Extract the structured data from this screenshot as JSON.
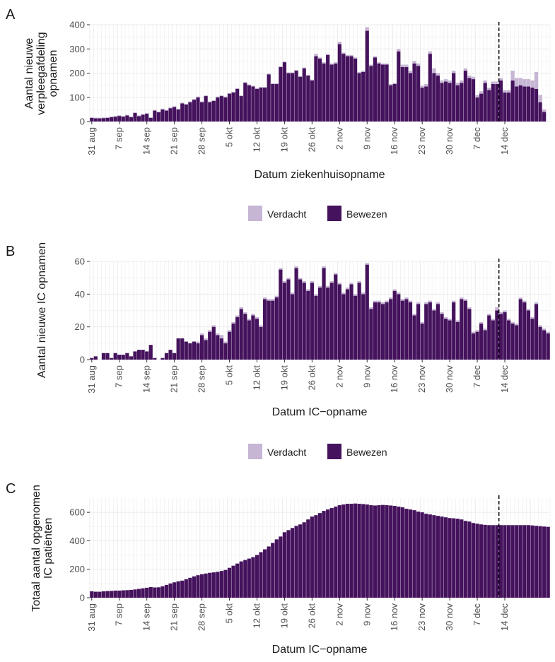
{
  "colors": {
    "bewezen": "#45125d",
    "verdacht": "#c6b5d4",
    "grid": "#ebebeb",
    "axis_text": "#4d4d4d",
    "title_text": "#1a1a1a"
  },
  "x_tick_labels": [
    "31 aug",
    "7 sep",
    "14 sep",
    "21 sep",
    "28 sep",
    "5 okt",
    "12 okt",
    "19 okt",
    "26 okt",
    "2 nov",
    "9 nov",
    "16 nov",
    "23 nov",
    "30 nov",
    "7 dec",
    "14 dec"
  ],
  "reference_line_date": "2020-12-13",
  "chart_data": [
    {
      "panel_tag": "A",
      "type": "bar",
      "stacked": true,
      "start_date": "2020-08-31",
      "ylabel_lines": [
        "Aantal nieuwe",
        "verpleegafdeling",
        "opnamen"
      ],
      "xlabel": "Datum ziekenhuisopname",
      "ylim": [
        0,
        400
      ],
      "y_ticks": [
        0,
        100,
        200,
        300,
        400
      ],
      "legend": {
        "position": "bottom",
        "entries": [
          "Verdacht",
          "Bewezen"
        ]
      },
      "grid": true,
      "series": [
        {
          "name": "Bewezen",
          "values": [
            15,
            13,
            13,
            14,
            15,
            18,
            20,
            23,
            20,
            25,
            18,
            35,
            22,
            28,
            32,
            15,
            45,
            38,
            50,
            45,
            55,
            60,
            50,
            75,
            70,
            80,
            90,
            100,
            80,
            105,
            80,
            85,
            100,
            105,
            100,
            115,
            120,
            135,
            105,
            160,
            150,
            145,
            135,
            140,
            140,
            195,
            155,
            155,
            225,
            245,
            200,
            200,
            210,
            185,
            220,
            190,
            170,
            270,
            260,
            240,
            275,
            235,
            240,
            320,
            280,
            270,
            270,
            260,
            200,
            205,
            375,
            230,
            265,
            240,
            235,
            235,
            150,
            155,
            290,
            225,
            225,
            200,
            240,
            230,
            140,
            145,
            280,
            200,
            190,
            160,
            165,
            160,
            200,
            150,
            160,
            210,
            180,
            175,
            100,
            115,
            160,
            130,
            155,
            155,
            170,
            120,
            120,
            170,
            145,
            150,
            145,
            145,
            140,
            135,
            80,
            40
          ],
          "partial_from_date": "2020-12-13"
        },
        {
          "name": "Verdacht",
          "values": [
            3,
            3,
            3,
            3,
            3,
            3,
            3,
            3,
            3,
            3,
            3,
            3,
            3,
            3,
            3,
            3,
            3,
            3,
            3,
            3,
            3,
            3,
            3,
            3,
            3,
            3,
            3,
            3,
            3,
            3,
            3,
            3,
            3,
            3,
            3,
            3,
            3,
            3,
            3,
            3,
            3,
            3,
            3,
            3,
            3,
            3,
            3,
            3,
            3,
            3,
            3,
            3,
            3,
            3,
            3,
            3,
            3,
            10,
            5,
            5,
            5,
            5,
            5,
            10,
            5,
            5,
            5,
            5,
            5,
            5,
            15,
            5,
            5,
            5,
            5,
            5,
            5,
            5,
            10,
            10,
            10,
            10,
            10,
            10,
            8,
            10,
            10,
            20,
            10,
            10,
            10,
            10,
            10,
            10,
            10,
            10,
            10,
            10,
            10,
            10,
            10,
            10,
            10,
            10,
            10,
            10,
            10,
            40,
            35,
            30,
            30,
            30,
            30,
            70,
            30,
            10
          ]
        }
      ]
    },
    {
      "panel_tag": "B",
      "type": "bar",
      "stacked": true,
      "start_date": "2020-08-31",
      "ylabel_lines": [
        "Aantal nieuwe IC opnamen"
      ],
      "xlabel": "Datum IC−opname",
      "ylim": [
        0,
        60
      ],
      "y_ticks": [
        0,
        20,
        40,
        60
      ],
      "legend": {
        "position": "bottom",
        "entries": [
          "Verdacht",
          "Bewezen"
        ]
      },
      "grid": true,
      "series": [
        {
          "name": "Bewezen",
          "values": [
            1,
            2,
            0,
            4,
            4,
            1,
            4,
            3,
            3,
            4,
            2,
            5,
            6,
            6,
            5,
            9,
            1,
            0,
            1,
            4,
            6,
            4,
            13,
            13,
            11,
            10,
            11,
            10,
            15,
            12,
            17,
            20,
            15,
            13,
            10,
            17,
            22,
            26,
            31,
            28,
            24,
            27,
            25,
            20,
            37,
            36,
            36,
            38,
            55,
            47,
            49,
            40,
            56,
            49,
            47,
            42,
            47,
            39,
            44,
            56,
            44,
            47,
            52,
            46,
            40,
            43,
            46,
            39,
            47,
            40,
            58,
            31,
            35,
            35,
            34,
            35,
            37,
            42,
            40,
            36,
            37,
            35,
            27,
            34,
            22,
            34,
            35,
            30,
            34,
            28,
            25,
            24,
            35,
            23,
            37,
            36,
            31,
            16,
            17,
            22,
            18,
            27,
            24,
            30,
            28,
            29,
            24,
            22,
            21,
            37,
            35,
            30,
            25,
            34,
            20,
            18,
            16
          ],
          "partial_from_date": "2020-12-13"
        },
        {
          "name": "Verdacht",
          "values": [
            0,
            0,
            0,
            0,
            0,
            0,
            0,
            0,
            0,
            0,
            0,
            0,
            0,
            0,
            0,
            0,
            0,
            0,
            0,
            0,
            0,
            0,
            0,
            0,
            0,
            0,
            0,
            1,
            1,
            1,
            1,
            1,
            1,
            2,
            1,
            1,
            1,
            1,
            1,
            1,
            1,
            1,
            1,
            1,
            1,
            1,
            1,
            1,
            1,
            1,
            1,
            1,
            1,
            1,
            1,
            1,
            1,
            1,
            1,
            1,
            1,
            1,
            1,
            1,
            1,
            1,
            1,
            1,
            1,
            1,
            1,
            1,
            1,
            1,
            1,
            1,
            1,
            1,
            1,
            1,
            1,
            1,
            1,
            1,
            1,
            1,
            1,
            1,
            1,
            1,
            1,
            1,
            1,
            1,
            1,
            1,
            1,
            1,
            1,
            1,
            1,
            1,
            1,
            2,
            1,
            1,
            1,
            1,
            1,
            1,
            1,
            1,
            1,
            1,
            1,
            1,
            1
          ]
        }
      ]
    },
    {
      "panel_tag": "C",
      "type": "bar",
      "stacked": false,
      "start_date": "2020-08-31",
      "ylabel_lines": [
        "Totaal aantal opgenomen",
        "IC patiënten"
      ],
      "xlabel": "Datum IC−opname",
      "ylim": [
        0,
        700
      ],
      "y_ticks": [
        0,
        200,
        400,
        600
      ],
      "grid": true,
      "series": [
        {
          "name": "Bewezen",
          "values": [
            45,
            42,
            42,
            45,
            47,
            48,
            50,
            50,
            52,
            53,
            55,
            58,
            62,
            66,
            70,
            75,
            72,
            73,
            80,
            90,
            100,
            108,
            115,
            120,
            130,
            140,
            150,
            158,
            165,
            170,
            175,
            178,
            182,
            188,
            195,
            210,
            225,
            240,
            255,
            265,
            275,
            285,
            300,
            320,
            340,
            360,
            385,
            410,
            430,
            460,
            475,
            490,
            505,
            515,
            530,
            550,
            570,
            580,
            595,
            610,
            620,
            630,
            640,
            650,
            655,
            660,
            660,
            662,
            660,
            658,
            655,
            650,
            648,
            650,
            652,
            650,
            648,
            645,
            640,
            635,
            625,
            620,
            615,
            605,
            600,
            590,
            585,
            580,
            575,
            570,
            565,
            560,
            558,
            555,
            550,
            540,
            535,
            525,
            520,
            515,
            512,
            510,
            510,
            510,
            510,
            510,
            510,
            510,
            510,
            510,
            510,
            510,
            508,
            505,
            503,
            500,
            498
          ]
        }
      ]
    }
  ]
}
